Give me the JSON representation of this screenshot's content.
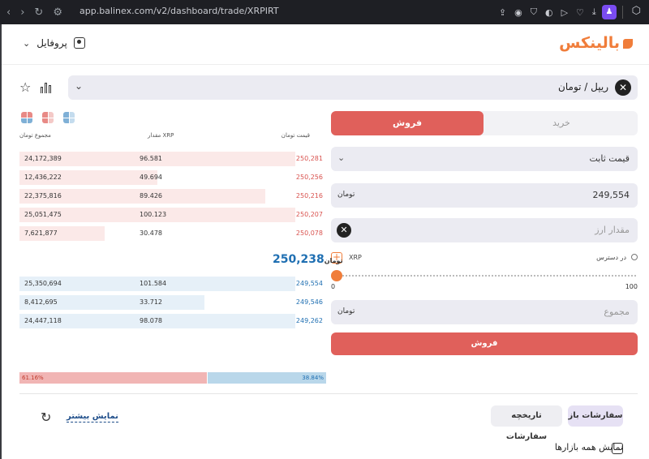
{
  "browser": {
    "url": "app.balinex.com/v2/dashboard/trade/XRPIRT",
    "icons": [
      "back-icon",
      "forward-icon",
      "reload-icon",
      "tune-icon",
      "share-icon",
      "camera-icon",
      "shield-icon",
      "translate-icon",
      "play-icon",
      "heart-icon",
      "download-icon",
      "menu-icon",
      "profile-extension-icon",
      "cube-icon"
    ]
  },
  "header": {
    "logo": "بالینکس",
    "profile_label": "پروفایل"
  },
  "market": {
    "pair": "ریپل / تومان",
    "coin_symbol": "✕"
  },
  "form": {
    "tab_buy": "خرید",
    "tab_sell": "فروش",
    "order_type": "قیمت ثابت",
    "price_value": "249,554",
    "price_unit": "تومان",
    "amount_placeholder": "مقدار ارز",
    "available_label": "در دسترس",
    "available_currency": "XRP",
    "slider_min": "0",
    "slider_max": "100",
    "slider_value": 0,
    "total_placeholder": "مجموع",
    "total_unit": "تومان",
    "submit_label": "فروش"
  },
  "orderbook": {
    "col_total": "مجموع تومان",
    "col_amount": "مقدار XRP",
    "col_price": "قیمت تومان",
    "asks": [
      {
        "total": "24,172,389",
        "amount": "96.581",
        "price": "250,281",
        "depth": 1.0
      },
      {
        "total": "12,436,222",
        "amount": "49.694",
        "price": "250,256",
        "depth": 0.5
      },
      {
        "total": "22,375,816",
        "amount": "89.426",
        "price": "250,216",
        "depth": 0.89
      },
      {
        "total": "25,051,475",
        "amount": "100.123",
        "price": "250,207",
        "depth": 1.0
      },
      {
        "total": "7,621,877",
        "amount": "30.478",
        "price": "250,078",
        "depth": 0.31
      }
    ],
    "last_price": "250,238",
    "last_price_unit": "تومان",
    "bids": [
      {
        "total": "25,350,694",
        "amount": "101.584",
        "price": "249,554",
        "depth": 1.0
      },
      {
        "total": "8,412,695",
        "amount": "33.712",
        "price": "249,546",
        "depth": 0.67
      },
      {
        "total": "24,447,118",
        "amount": "98.078",
        "price": "249,262",
        "depth": 1.0
      }
    ],
    "sell_ratio_label": "61.16%",
    "sell_ratio": 0.6116,
    "buy_ratio_label": "38.84%",
    "buy_ratio": 0.3884,
    "colors": {
      "ask": "#d9534f",
      "bid": "#1f6fb2"
    }
  },
  "orders": {
    "tab_open": "سفارشات باز",
    "tab_history": "تاریخچه سفارشات",
    "show_more": "نمایش بیشتر",
    "show_all_markets": "نمایش همه بازارها"
  }
}
